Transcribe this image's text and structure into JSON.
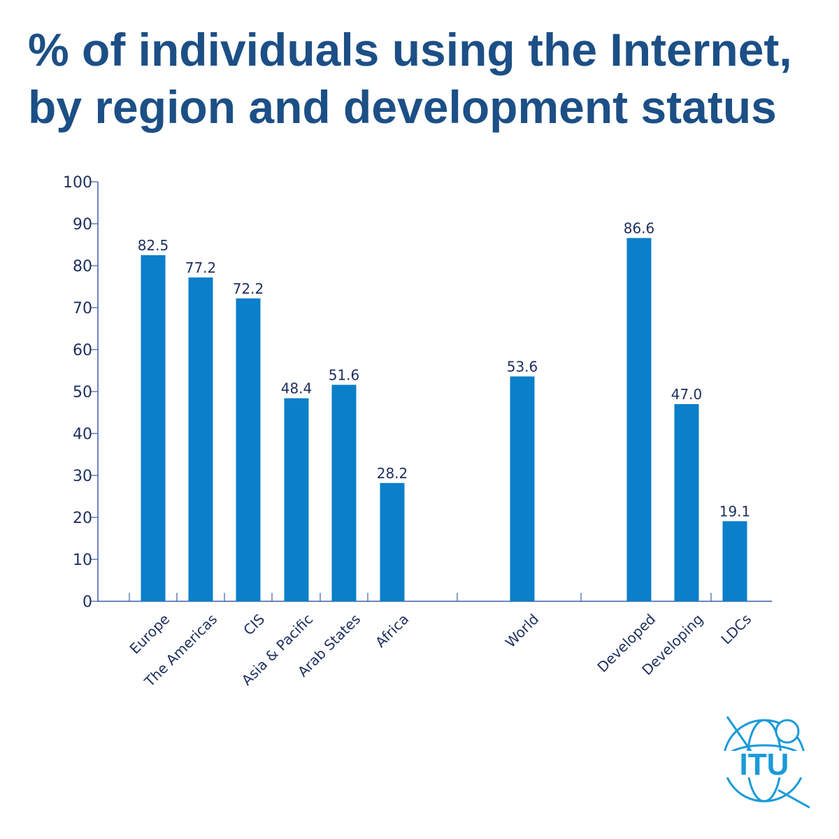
{
  "title_lines": [
    "% of individuals using the Internet,",
    "by region and development status"
  ],
  "logo_text": "ITU",
  "colors": {
    "bar": "#0a7fca",
    "axis": "#3a5fa8",
    "text": "#1e2f5e",
    "title": "#1c4f86",
    "logo": "#1a9ad9"
  },
  "chart_data": {
    "type": "bar",
    "title": "% of individuals using the Internet, by region and development status",
    "xlabel": "",
    "ylabel": "",
    "ylim": [
      0,
      100
    ],
    "yticks": [
      0,
      10,
      20,
      30,
      40,
      50,
      60,
      70,
      80,
      90,
      100
    ],
    "grid": false,
    "categories": [
      "Europe",
      "The Americas",
      "CIS",
      "Asia & Pacific",
      "Arab States",
      "Africa",
      "World",
      "Developed",
      "Developing",
      "LDCs"
    ],
    "values": [
      82.5,
      77.2,
      72.2,
      48.4,
      51.6,
      28.2,
      53.6,
      86.6,
      47.0,
      19.1
    ],
    "value_labels": [
      "82.5",
      "77.2",
      "72.2",
      "48.4",
      "51.6",
      "28.2",
      "53.6",
      "86.6",
      "47.0",
      "19.1"
    ],
    "groups": [
      {
        "categories": [
          "Europe",
          "The Americas",
          "CIS",
          "Asia & Pacific",
          "Arab States",
          "Africa"
        ]
      },
      {
        "categories": [
          "World"
        ]
      },
      {
        "categories": [
          "Developed",
          "Developing",
          "LDCs"
        ]
      }
    ]
  }
}
